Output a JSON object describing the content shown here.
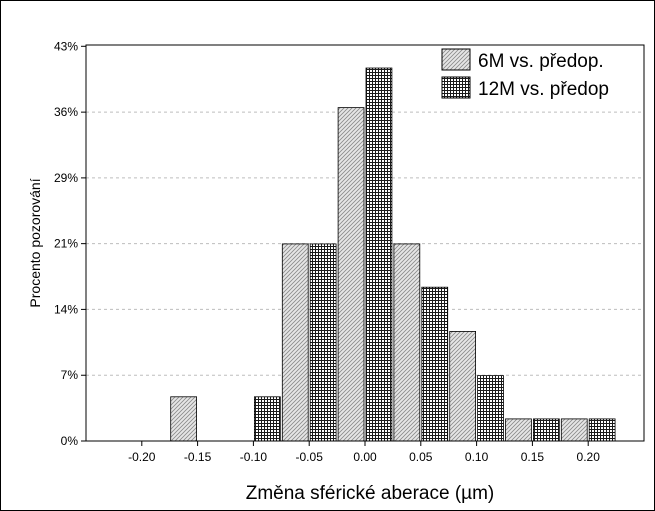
{
  "chart_data": {
    "type": "bar",
    "xlabel": "Změna sférické aberace (µm)",
    "ylabel": "Procento pozorování",
    "xlim": [
      -0.25,
      0.25
    ],
    "ylim": [
      0,
      43
    ],
    "x_ticks": [
      "-0.20",
      "-0.15",
      "-0.10",
      "-0.05",
      "0.00",
      "0.05",
      "0.10",
      "0.15",
      "0.20"
    ],
    "x_tick_values": [
      -0.2,
      -0.15,
      -0.1,
      -0.05,
      0.0,
      0.05,
      0.1,
      0.15,
      0.2
    ],
    "y_ticks": [
      "0%",
      "7%",
      "14%",
      "21%",
      "29%",
      "36%",
      "43%"
    ],
    "y_tick_values": [
      0,
      7.14,
      14.29,
      21.43,
      28.57,
      35.71,
      42.86
    ],
    "grid": "horizontal dashed",
    "legend_position": "top-right",
    "bin_width": 0.05,
    "bins": [
      -0.2,
      -0.15,
      -0.1,
      -0.05,
      0.0,
      0.05,
      0.1,
      0.15,
      0.2
    ],
    "series": [
      {
        "name": "6M vs. předop.",
        "pattern": "diagonal-hatch",
        "values": [
          0,
          4.8,
          0,
          21.4,
          36.2,
          21.4,
          11.9,
          2.4,
          2.4
        ]
      },
      {
        "name": "12M vs. předop",
        "pattern": "grid-hatch",
        "values": [
          0,
          0,
          4.8,
          21.4,
          40.5,
          16.7,
          7.1,
          2.4,
          2.4
        ]
      }
    ]
  }
}
